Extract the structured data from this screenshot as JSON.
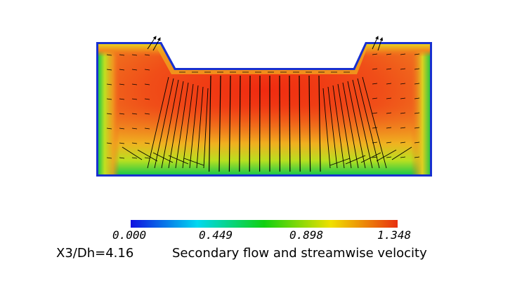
{
  "colorbar": {
    "ticks": [
      "0.000",
      "0.449",
      "0.898",
      "1.348"
    ],
    "min": 0.0,
    "max": 1.348,
    "colors": [
      "#1010e0",
      "#00d8f0",
      "#10d010",
      "#f0e000",
      "#e83010"
    ]
  },
  "caption": {
    "station": "X3/Dh=4.16",
    "title": "Secondary flow and streamwise velocity"
  },
  "contour": {
    "core_color": "#f03a14",
    "wall_color": "#1830d0",
    "mid_color": "#30c830",
    "vector_color": "#000000"
  }
}
